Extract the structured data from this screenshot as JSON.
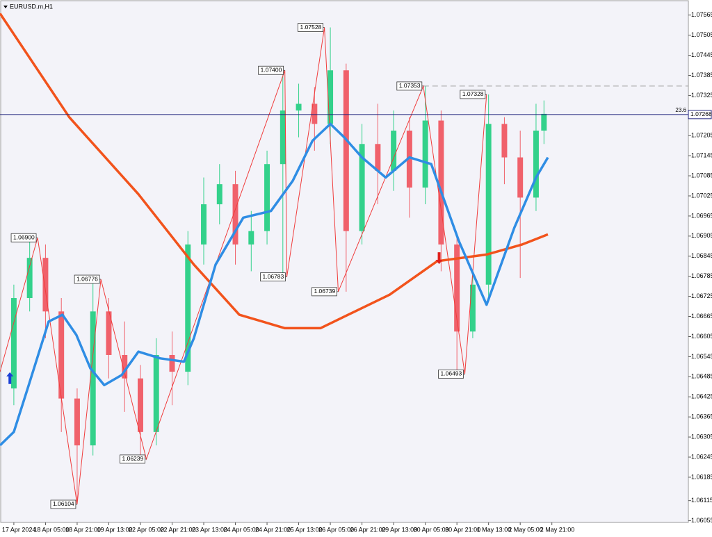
{
  "chart_data": {
    "type": "candlestick",
    "title": "EURUSD.m,H1",
    "ylim": [
      1.0605,
      1.0761
    ],
    "yticks": [
      1.07565,
      1.07505,
      1.07445,
      1.07385,
      1.07325,
      1.07205,
      1.07145,
      1.07085,
      1.07025,
      1.06965,
      1.06905,
      1.06845,
      1.06785,
      1.06725,
      1.06665,
      1.06605,
      1.06545,
      1.06485,
      1.06425,
      1.06365,
      1.06305,
      1.06245,
      1.06185,
      1.06115,
      1.06055
    ],
    "xlim": [
      -7,
      341
    ],
    "xticks": [
      {
        "value": 0,
        "label": "17 Apr 2024"
      },
      {
        "value": 16,
        "label": "18 Apr 05:00"
      },
      {
        "value": 32,
        "label": "18 Apr 21:00"
      },
      {
        "value": 48,
        "label": "19 Apr 13:00"
      },
      {
        "value": 64,
        "label": "22 Apr 05:00"
      },
      {
        "value": 80,
        "label": "22 Apr 21:00"
      },
      {
        "value": 96,
        "label": "23 Apr 13:00"
      },
      {
        "value": 112,
        "label": "24 Apr 05:00"
      },
      {
        "value": 128,
        "label": "24 Apr 21:00"
      },
      {
        "value": 144,
        "label": "25 Apr 13:00"
      },
      {
        "value": 160,
        "label": "26 Apr 05:00"
      },
      {
        "value": 176,
        "label": "26 Apr 21:00"
      },
      {
        "value": 192,
        "label": "29 Apr 13:00"
      },
      {
        "value": 208,
        "label": "30 Apr 05:00"
      },
      {
        "value": 224,
        "label": "30 Apr 21:00"
      },
      {
        "value": 240,
        "label": "1 May 13:00"
      },
      {
        "value": 256,
        "label": "2 May 05:00"
      },
      {
        "value": 272,
        "label": "2 May 21:00"
      }
    ],
    "up_color": "#33d18b",
    "down_color": "#f0616b",
    "x": [
      0,
      8,
      16,
      24,
      32,
      40,
      48,
      56,
      64,
      72,
      80,
      88,
      96,
      104,
      112,
      120,
      128,
      136,
      144,
      152,
      160,
      168,
      176,
      184,
      192,
      200,
      208,
      216,
      224,
      232,
      240,
      248,
      256,
      264,
      268
    ],
    "open": [
      1.0645,
      1.0672,
      1.0684,
      1.0668,
      1.0642,
      1.0628,
      1.0668,
      1.0655,
      1.0648,
      1.0632,
      1.0655,
      1.065,
      1.0688,
      1.07,
      1.0706,
      1.0688,
      1.0692,
      1.0712,
      1.0728,
      1.073,
      1.0724,
      1.074,
      1.0692,
      1.0718,
      1.071,
      1.0722,
      1.0705,
      1.0725,
      1.0688,
      1.0662,
      1.0676,
      1.0724,
      1.0714,
      1.0702,
      1.0722
    ],
    "high": [
      1.0676,
      1.069,
      1.0688,
      1.0672,
      1.0645,
      1.06776,
      1.0672,
      1.0665,
      1.0652,
      1.066,
      1.0662,
      1.0692,
      1.0708,
      1.0712,
      1.071,
      1.0698,
      1.0716,
      1.074,
      1.0736,
      1.0735,
      1.07528,
      1.0742,
      1.0724,
      1.073,
      1.0728,
      1.0726,
      1.07353,
      1.0728,
      1.069,
      1.068,
      1.07328,
      1.0726,
      1.0722,
      1.073,
      1.0731
    ],
    "low": [
      1.064,
      1.0668,
      1.066,
      1.0632,
      1.06104,
      1.0625,
      1.0648,
      1.0638,
      1.06239,
      1.0628,
      1.064,
      1.0646,
      1.0682,
      1.0694,
      1.0682,
      1.068,
      1.0688,
      1.06783,
      1.072,
      1.0716,
      1.0718,
      1.06739,
      1.0688,
      1.07,
      1.0704,
      1.0696,
      1.07,
      1.068,
      1.06493,
      1.066,
      1.0672,
      1.0706,
      1.0678,
      1.0698,
      1.0718
    ],
    "close": [
      1.0672,
      1.0684,
      1.0668,
      1.0642,
      1.0628,
      1.0668,
      1.0655,
      1.0648,
      1.0632,
      1.0655,
      1.065,
      1.0688,
      1.07,
      1.0706,
      1.0688,
      1.0692,
      1.0712,
      1.0728,
      1.073,
      1.0724,
      1.074,
      1.0692,
      1.0718,
      1.071,
      1.0722,
      1.0705,
      1.0725,
      1.0688,
      1.0662,
      1.0676,
      1.0724,
      1.0714,
      1.0702,
      1.0722,
      1.0727
    ],
    "ma_fast": {
      "color": "#2f8de4",
      "x": [
        -7,
        0,
        7,
        17.6,
        24.6,
        31.6,
        38.7,
        45.7,
        54.5,
        63,
        74,
        86,
        91,
        102,
        116,
        130,
        141,
        151,
        160,
        167,
        176,
        188,
        200,
        211,
        225,
        239,
        253,
        264,
        270
      ],
      "values": [
        1.0628,
        1.0632,
        1.0645,
        1.0665,
        1.0667,
        1.0661,
        1.0651,
        1.0646,
        1.0649,
        1.0656,
        1.0654,
        1.0653,
        1.066,
        1.0682,
        1.0696,
        1.0698,
        1.0707,
        1.0719,
        1.0724,
        1.072,
        1.0714,
        1.0708,
        1.0714,
        1.0712,
        1.0689,
        1.067,
        1.0693,
        1.0708,
        1.0714
      ]
    },
    "ma_slow": {
      "color": "#f2531c",
      "x": [
        -7,
        28,
        63,
        91,
        114,
        137,
        155,
        169,
        190,
        214,
        239,
        257,
        270
      ],
      "values": [
        1.0757,
        1.0726,
        1.0703,
        1.0682,
        1.0667,
        1.0663,
        1.0663,
        1.0667,
        1.0673,
        1.0683,
        1.0685,
        1.0688,
        1.0691
      ]
    },
    "zigzag": {
      "color": "#f03c3c",
      "x": [
        -7,
        12,
        32,
        44,
        67,
        137,
        138,
        157,
        164,
        207,
        228,
        239
      ],
      "values": [
        1.065,
        1.069,
        1.06104,
        1.06776,
        1.06239,
        1.074,
        1.06783,
        1.07528,
        1.06739,
        1.07353,
        1.06493,
        1.07328
      ],
      "value_labels": [
        null,
        "1.06900",
        "1.06104",
        "1.06776",
        "1.06239",
        "1.07400",
        "1.06783",
        "1.07528",
        "1.06739",
        "1.07353",
        "1.06493",
        "1.07328"
      ]
    },
    "current_price": 1.07268,
    "current_price_color": "#1c1f7a",
    "fib_label": "23.6",
    "dashed_level": {
      "x": 207,
      "value": 1.07353,
      "color": "#a0a0a0"
    },
    "signals": [
      {
        "direction": "up",
        "x": -2,
        "value": 1.0648,
        "color": "#1a3fd6"
      },
      {
        "direction": "down",
        "x": 215,
        "value": 1.0684,
        "color": "#e0201c"
      }
    ]
  }
}
